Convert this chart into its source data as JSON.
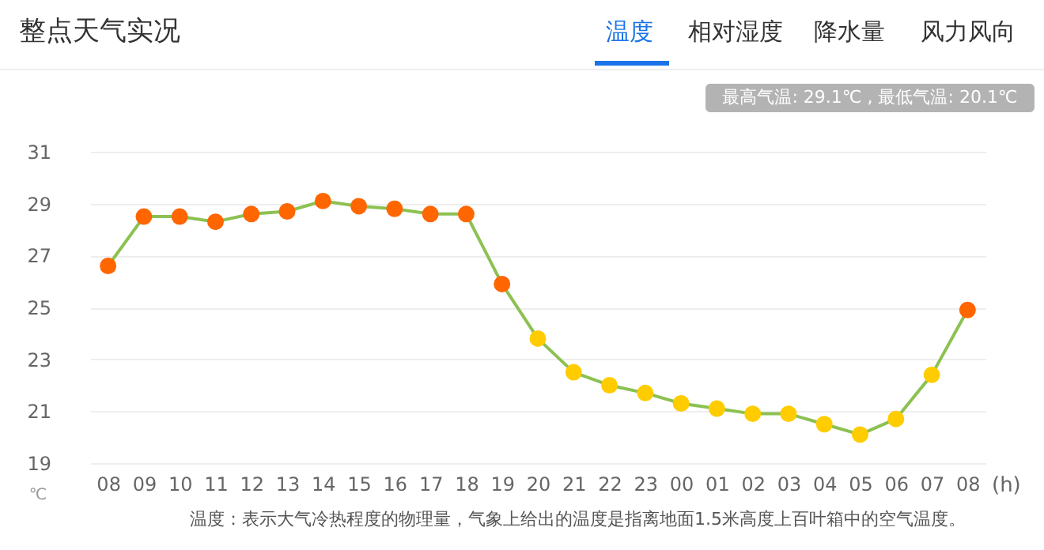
{
  "chart_data": {
    "type": "line",
    "title": "整点天气实况",
    "categories": [
      "08",
      "09",
      "10",
      "11",
      "12",
      "13",
      "14",
      "15",
      "16",
      "17",
      "18",
      "19",
      "20",
      "21",
      "22",
      "23",
      "00",
      "01",
      "02",
      "03",
      "04",
      "05",
      "06",
      "07",
      "08"
    ],
    "series": [
      {
        "color": "#8cc152",
        "values": [
          26.6,
          28.5,
          28.5,
          28.3,
          28.6,
          28.7,
          29.1,
          28.9,
          28.8,
          28.6,
          28.6,
          25.9,
          23.8,
          22.5,
          22.0,
          21.7,
          21.3,
          21.1,
          20.9,
          20.9,
          20.5,
          20.1,
          20.7,
          22.4,
          24.9
        ],
        "colors": [
          "#ff6600",
          "#ff6600",
          "#ff6600",
          "#ff6600",
          "#ff6600",
          "#ff6600",
          "#ff6600",
          "#ff6600",
          "#ff6600",
          "#ff6600",
          "#ff6600",
          "#ff6600",
          "#ffcc00",
          "#ffcc00",
          "#ffcc00",
          "#ffcc00",
          "#ffcc00",
          "#ffcc00",
          "#ffcc00",
          "#ffcc00",
          "#ffcc00",
          "#ffcc00",
          "#ffcc00",
          "#ffcc00",
          "#ff6600"
        ]
      }
    ],
    "ylim": [
      19,
      31
    ],
    "yticks": [
      19,
      21,
      23,
      25,
      27,
      29,
      31
    ],
    "grid": "y",
    "marker": "circle",
    "line_style": "solid",
    "xlabel": "(h)",
    "ylabel": "℃",
    "annotations": [
      "温度",
      "相对湿度",
      "降水量",
      "风力风向",
      "最高气温: 29.1℃ , 最低气温: 20.1℃",
      "温度：表示大气冷热程度的物理量，气象上给出的温度是指离地面1.5米高度上百叶箱中的空气温度。"
    ]
  }
}
